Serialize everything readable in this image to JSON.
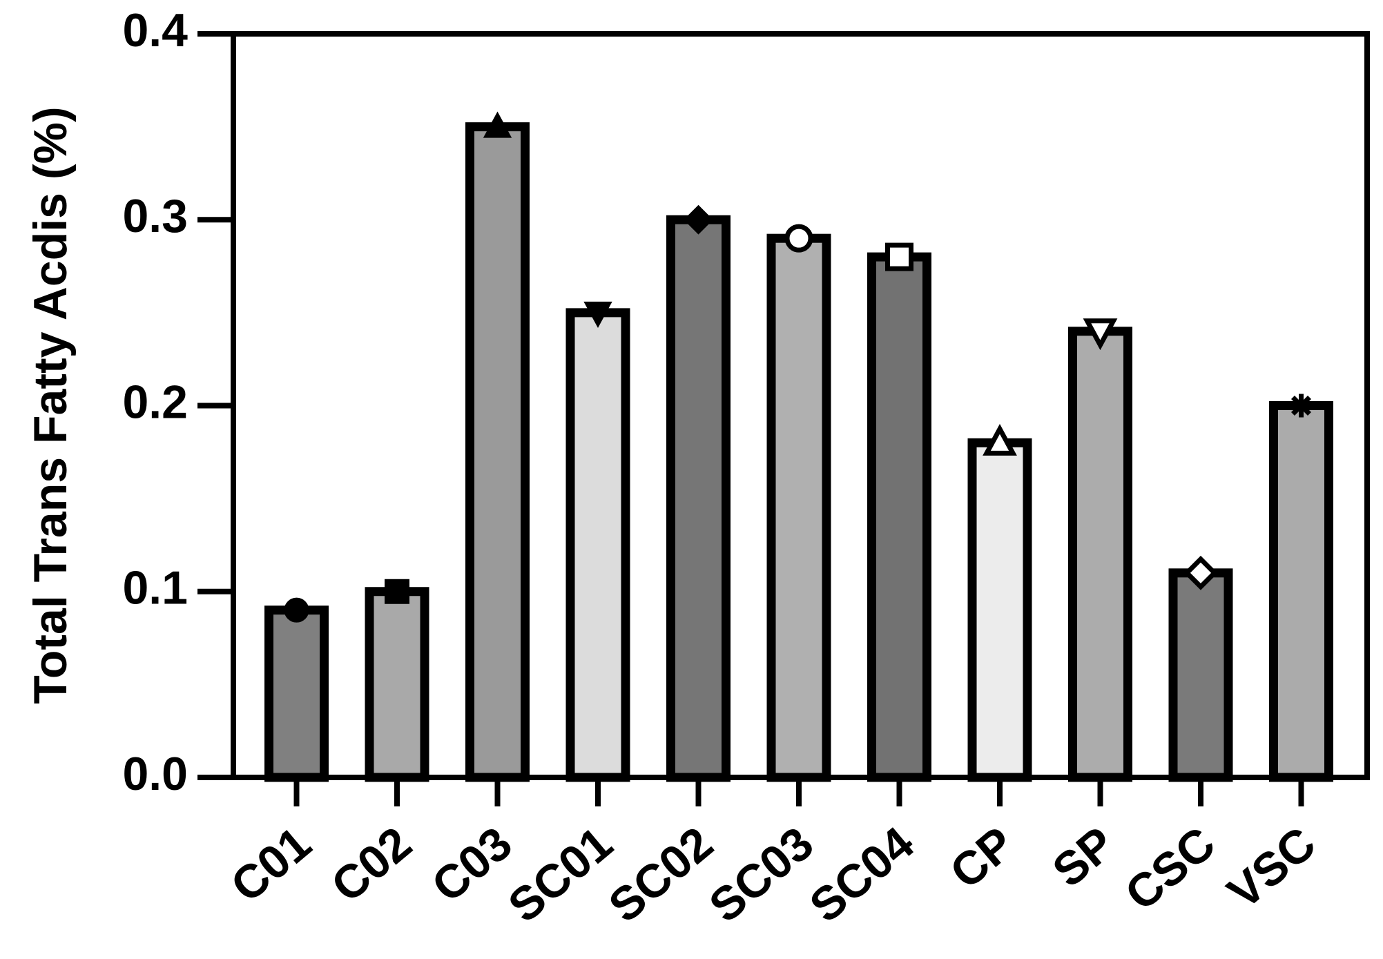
{
  "chart_data": {
    "type": "bar",
    "y_label": "Total Trans Fatty Acdis (%)",
    "categories": [
      "C01",
      "C02",
      "C03",
      "SC01",
      "SC02",
      "SC03",
      "SC04",
      "CP",
      "SP",
      "CSC",
      "VSC"
    ],
    "values": [
      0.09,
      0.1,
      0.35,
      0.25,
      0.3,
      0.29,
      0.28,
      0.18,
      0.24,
      0.11,
      0.2
    ],
    "colors": [
      "#808080",
      "#a9a9a9",
      "#9a9a9a",
      "#dcdcdc",
      "#767676",
      "#b0b0b0",
      "#727272",
      "#ececec",
      "#acacac",
      "#7a7a7a",
      "#ababab"
    ],
    "markers": [
      "circle",
      "square",
      "triangle",
      "triangle-down",
      "diamond",
      "circle-open",
      "square-open",
      "triangle-open",
      "triangle-down-open",
      "diamond-open",
      "asterisk"
    ],
    "ylim": [
      0,
      0.4
    ],
    "yticks": [
      {
        "value": 0,
        "label": "0.0"
      },
      0.1,
      0.2,
      0.3,
      0.4
    ]
  }
}
